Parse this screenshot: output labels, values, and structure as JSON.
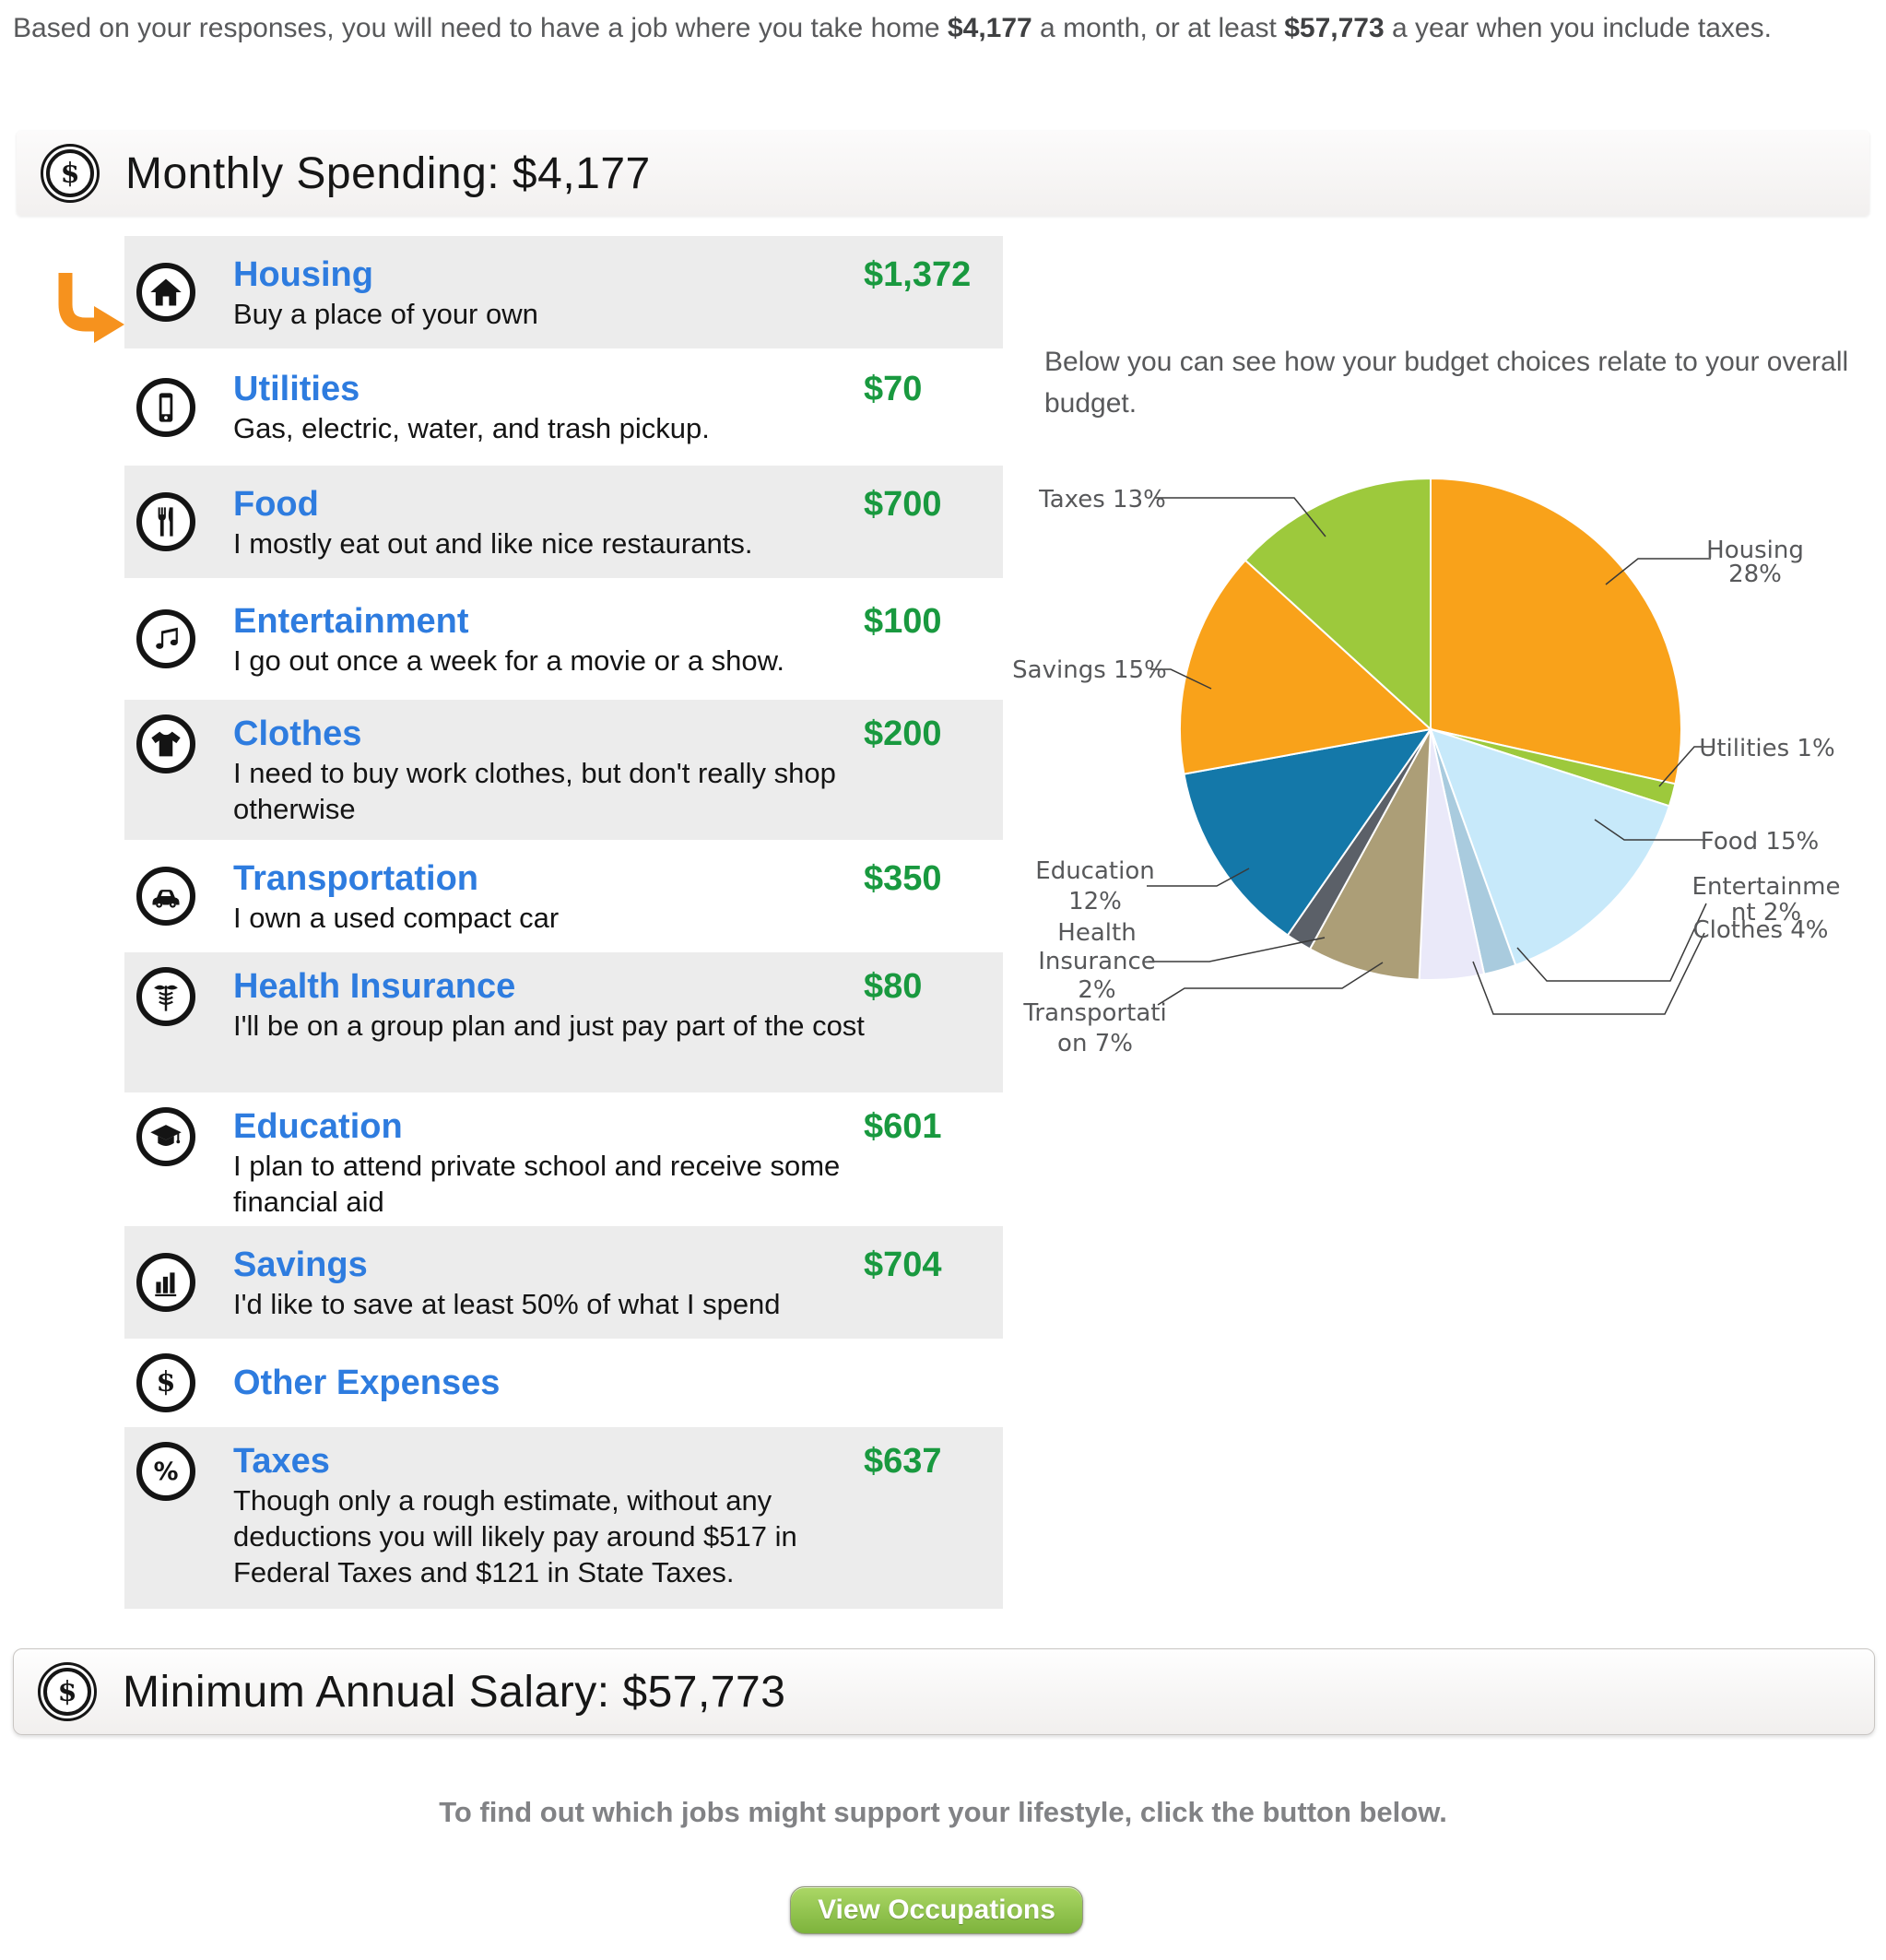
{
  "intro": {
    "pre": "Based on your responses, you will need to have a job where you take home ",
    "monthly_bold": "$4,177",
    "mid": " a month, or at least ",
    "annual_bold": "$57,773",
    "post": " a year when you include taxes."
  },
  "monthly_header": {
    "icon": "dollar-circle-icon",
    "title": "Monthly Spending: $4,177"
  },
  "categories": [
    {
      "name": "Housing",
      "desc": "Buy a place of your own",
      "amount": "$1,372",
      "icon": "home-icon",
      "shaded": true,
      "selected": true
    },
    {
      "name": "Utilities",
      "desc": "Gas, electric, water, and trash pickup.",
      "amount": "$70",
      "icon": "phone-icon",
      "shaded": false
    },
    {
      "name": "Food",
      "desc": "I mostly eat out and like nice restaurants.",
      "amount": "$700",
      "icon": "utensils-icon",
      "shaded": true
    },
    {
      "name": "Entertainment",
      "desc": "I go out once a week for a movie or a show.",
      "amount": "$100",
      "icon": "music-note-icon",
      "shaded": false
    },
    {
      "name": "Clothes",
      "desc": "I need to buy work clothes, but don't really shop otherwise",
      "amount": "$200",
      "icon": "tshirt-icon",
      "shaded": true
    },
    {
      "name": "Transportation",
      "desc": "I own a used compact car",
      "amount": "$350",
      "icon": "car-icon",
      "shaded": false
    },
    {
      "name": "Health Insurance",
      "desc": "I'll be on a group plan and just pay part of the cost",
      "amount": "$80",
      "icon": "caduceus-icon",
      "shaded": true
    },
    {
      "name": "Education",
      "desc": "I plan to attend private school and receive some financial aid",
      "amount": "$601",
      "icon": "graduation-cap-icon",
      "shaded": false
    },
    {
      "name": "Savings",
      "desc": "I'd like to save at least 50% of what I spend",
      "amount": "$704",
      "icon": "bar-chart-icon",
      "shaded": true
    },
    {
      "name": "Other Expenses",
      "desc": "",
      "amount": "",
      "icon": "dollar-icon",
      "shaded": false
    },
    {
      "name": "Taxes",
      "desc": "Though only a rough estimate, without any deductions you will likely pay around $517 in Federal Taxes and $121 in State Taxes.",
      "amount": "$637",
      "icon": "percent-icon",
      "shaded": true
    }
  ],
  "chart_intro": "Below you can see how your budget choices relate to your overall budget.",
  "chart_data": {
    "type": "pie",
    "title": "",
    "categories": [
      "Housing",
      "Utilities",
      "Food",
      "Entertainment",
      "Clothes",
      "Transportation",
      "Health Insurance",
      "Education",
      "Savings",
      "Taxes"
    ],
    "values": [
      1372,
      70,
      700,
      100,
      200,
      350,
      80,
      601,
      704,
      637
    ],
    "percents": [
      28,
      1,
      15,
      2,
      4,
      7,
      2,
      12,
      15,
      13
    ],
    "label_lines": [
      [
        "Housing",
        "28%"
      ],
      [
        "Utilities 1%"
      ],
      [
        "Food 15%"
      ],
      [
        "Entertainme",
        "nt 2%"
      ],
      [
        "Clothes 4%"
      ],
      [
        "Transportati",
        "on 7%"
      ],
      [
        "Health",
        "Insurance",
        "2%"
      ],
      [
        "Education",
        "12%"
      ],
      [
        "Savings 15%"
      ],
      [
        "Taxes 13%"
      ]
    ],
    "colors": [
      "#F9A21A",
      "#9DC93C",
      "#C7E9FA",
      "#A9CBDE",
      "#EAE9F9",
      "#AC9E77",
      "#5B6068",
      "#1478A9",
      "#F9A21A",
      "#9DC93C"
    ],
    "start_angle_deg_from_top": 0,
    "clockwise": true,
    "legend_position": "outside-callout-labels",
    "grid": false
  },
  "salary_bar": {
    "icon": "dollar-circle-icon",
    "title": "Minimum Annual Salary: $57,773"
  },
  "footer": {
    "cta_text": "To find out which jobs might support your lifestyle, click the button below.",
    "button_label": "View Occupations"
  }
}
